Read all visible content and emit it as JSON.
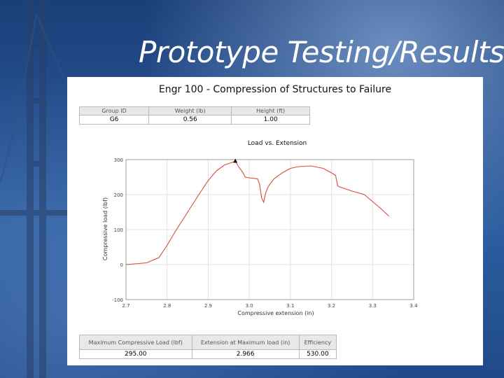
{
  "slide": {
    "title": "Prototype Testing/Results"
  },
  "panel": {
    "title": "Engr 100 - Compression of Structures to Failure"
  },
  "group_table": {
    "headers": [
      "Group ID",
      "Weight (lb)",
      "Height (ft)"
    ],
    "values": [
      "G6",
      "0.56",
      "1.00"
    ]
  },
  "results_table": {
    "headers": [
      "Maximum Compressive Load (lbf)",
      "Extension at Maximum load (in)",
      "Efficiency"
    ],
    "values": [
      "295.00",
      "2.966",
      "530.00"
    ]
  },
  "chart_data": {
    "type": "line",
    "title": "Load vs. Extension",
    "xlabel": "Compressive extension (in)",
    "ylabel": "Compressive load (lbf)",
    "xlim": [
      2.7,
      3.4
    ],
    "ylim": [
      -100,
      300
    ],
    "x_ticks": [
      "2.7",
      "2.8",
      "2.9",
      "3.0",
      "3.1",
      "3.2",
      "3.3",
      "3.4"
    ],
    "y_ticks": [
      "-100",
      "0",
      "100",
      "200",
      "300"
    ],
    "grid": true,
    "line_color": "#d94a3a",
    "series": [
      {
        "x": [
          2.7,
          2.75,
          2.78,
          2.8,
          2.82,
          2.85,
          2.88,
          2.9,
          2.92,
          2.94,
          2.966,
          2.975,
          2.985,
          2.99,
          3.0,
          3.02,
          3.025,
          3.03,
          3.035,
          3.04,
          3.045,
          3.05,
          3.055,
          3.06,
          3.08,
          3.1,
          3.12,
          3.15,
          3.18,
          3.2,
          3.21,
          3.215,
          3.22,
          3.25,
          3.28,
          3.3,
          3.32,
          3.34
        ],
        "y": [
          0,
          5,
          20,
          55,
          95,
          150,
          205,
          240,
          268,
          285,
          295,
          278,
          262,
          250,
          248,
          245,
          230,
          190,
          178,
          205,
          220,
          230,
          237,
          245,
          262,
          275,
          280,
          282,
          275,
          262,
          255,
          225,
          222,
          210,
          200,
          180,
          160,
          138
        ]
      }
    ],
    "marker": {
      "x": 2.966,
      "y": 295
    }
  }
}
